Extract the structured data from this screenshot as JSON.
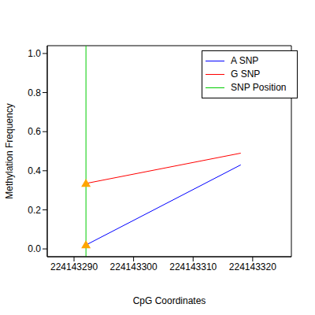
{
  "chart_data": {
    "type": "line",
    "x_label": "CpG Coordinates",
    "y_label": "Methylation Frequency",
    "xlim": [
      224143285.5,
      224143326.5
    ],
    "xticks": [
      224143290,
      224143300,
      224143310,
      224143320
    ],
    "ylim": [
      -0.04,
      1.04
    ],
    "yticks": [
      {
        "value": 0,
        "label": "0.0"
      },
      0.2,
      0.4,
      0.6,
      0.8,
      {
        "value": 1,
        "label": "1.0"
      }
    ],
    "grid": false,
    "legend": "upper right",
    "series": [
      {
        "name": "A SNP",
        "type": "line",
        "color": "#0000FF",
        "x": [
          224143292,
          224143318
        ],
        "values": [
          0.02,
          0.43
        ]
      },
      {
        "name": "G SNP",
        "type": "line",
        "color": "#FF0000",
        "x": [
          224143292,
          224143318
        ],
        "values": [
          0.335,
          0.49
        ]
      },
      {
        "name": "SNP Position",
        "type": "vline",
        "color": "#00CD00",
        "x": [
          224143292
        ]
      }
    ],
    "marker_points": {
      "color": "#FFA500",
      "marker": "triangle",
      "x": [
        224143292,
        224143292
      ],
      "values": [
        0.02,
        0.335
      ]
    }
  }
}
